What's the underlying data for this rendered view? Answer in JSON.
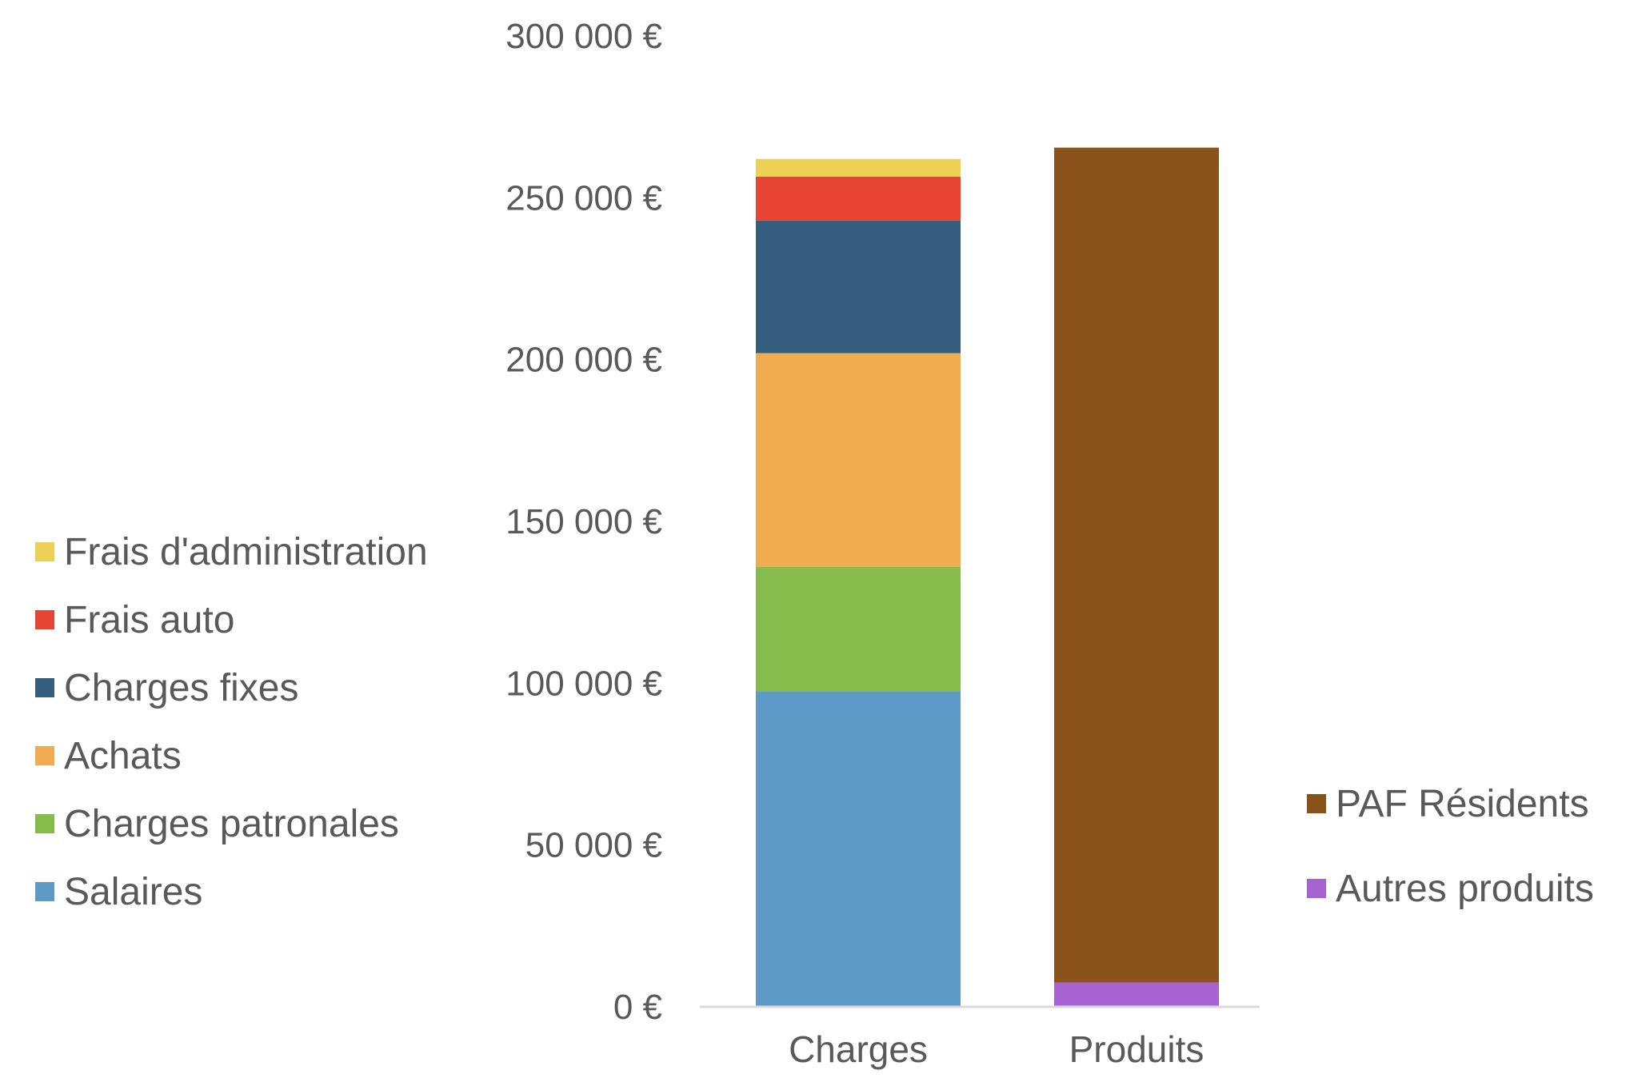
{
  "chart_data": {
    "type": "bar",
    "stacked": true,
    "title": "",
    "xlabel": "",
    "ylabel": "",
    "categories": [
      "Charges",
      "Produits"
    ],
    "ylim": [
      0,
      300000
    ],
    "yticks": [
      0,
      50000,
      100000,
      150000,
      200000,
      250000,
      300000
    ],
    "ytick_labels": [
      "0 €",
      "50 000 €",
      "100 000 €",
      "150 000 €",
      "200 000 €",
      "250 000 €",
      "300 000 €"
    ],
    "grid": false,
    "series": [
      {
        "name": "Salaires",
        "color": "#5e9ac6",
        "values": [
          97500,
          0
        ]
      },
      {
        "name": "Charges patronales",
        "color": "#86bc4c",
        "values": [
          38500,
          0
        ]
      },
      {
        "name": "Achats",
        "color": "#f1ac52",
        "values": [
          66000,
          0
        ]
      },
      {
        "name": "Charges fixes",
        "color": "#355e7e",
        "values": [
          41000,
          0
        ]
      },
      {
        "name": "Frais auto",
        "color": "#e84435",
        "values": [
          13500,
          0
        ]
      },
      {
        "name": "Frais d'administration",
        "color": "#ecd154",
        "values": [
          5500,
          0
        ]
      },
      {
        "name": "Autres produits",
        "color": "#a762d2",
        "values": [
          0,
          7500
        ]
      },
      {
        "name": "PAF Résidents",
        "color": "#8b531c",
        "values": [
          0,
          258000
        ]
      }
    ],
    "legend": {
      "left": [
        "Frais d'administration",
        "Frais auto",
        "Charges fixes",
        "Achats",
        "Charges patronales",
        "Salaires"
      ],
      "right": [
        "PAF Résidents",
        "Autres produits"
      ]
    }
  }
}
